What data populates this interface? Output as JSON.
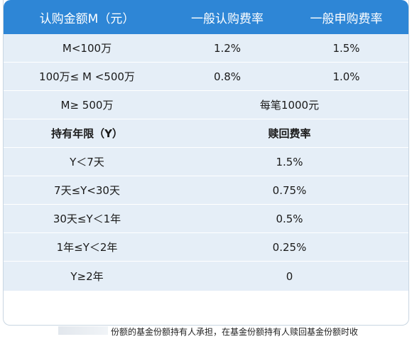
{
  "table": {
    "header": {
      "col1": "认购金额M（元）",
      "col2": "一般认购费率",
      "col3": "一般申购费率"
    },
    "purchase_rows": [
      {
        "amount": "M<100万",
        "subscribe": "1.2%",
        "purchase": "1.5%"
      },
      {
        "amount": "100万≤ M <500万",
        "subscribe": "0.8%",
        "purchase": "1.0%"
      },
      {
        "amount": "M≥ 500万",
        "flat": "每笔1000元"
      }
    ],
    "redemption_header": {
      "col1": "持有年限（Y）",
      "col2": "赎回费率"
    },
    "redemption_rows": [
      {
        "period": "Y＜7天",
        "rate": "1.5%"
      },
      {
        "period": "7天≤Y<30天",
        "rate": "0.75%"
      },
      {
        "period": "30天≤Y＜1年",
        "rate": "0.5%"
      },
      {
        "period": "1年≤Y＜2年",
        "rate": "0.25%"
      },
      {
        "period": "Y≥2年",
        "rate": "0"
      }
    ]
  },
  "footnote": "份额的基金份额持有人承担，在基金份额持有人赎回基金份额时收",
  "colors": {
    "header_bg": "#2e86d6",
    "row_bg": "#e5eef7"
  }
}
